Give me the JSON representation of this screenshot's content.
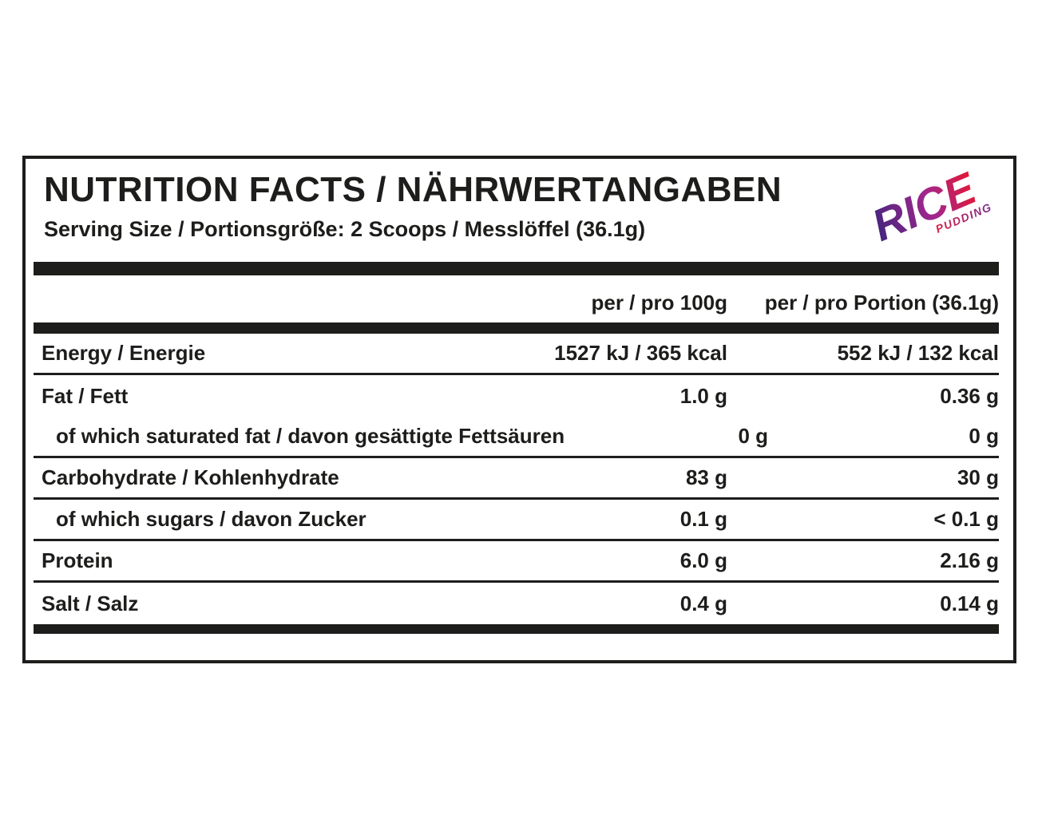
{
  "label": {
    "title": "NUTRITION FACTS / NÄHRWERTANGABEN",
    "serving_line": "Serving Size / Portionsgröße: 2 Scoops / Messlöffel (36.1g)"
  },
  "logo": {
    "text": "RICE",
    "subtext": "PUDDING",
    "colors": {
      "start": "#45257e",
      "mid": "#a1278d",
      "end": "#e31837",
      "sub_start": "#d81f44",
      "sub_end": "#7b2d8e"
    }
  },
  "colors": {
    "text": "#1d1d1b",
    "lines": "#1d1d1b",
    "background": "#ffffff"
  },
  "table": {
    "columns": [
      "per / pro 100g",
      "per / pro Portion (36.1g)"
    ],
    "rows": [
      {
        "label": "Energy / Energie",
        "per100": "1527 kJ / 365 kcal",
        "portion": "552 kJ / 132 kcal"
      },
      {
        "label": "Fat / Fett",
        "per100": "1.0 g",
        "portion": "0.36 g"
      },
      {
        "label": "of which saturated fat / davon gesättigte Fettsäuren",
        "per100": "0 g",
        "portion": "0 g"
      },
      {
        "label": "Carbohydrate / Kohlenhydrate",
        "per100": "83 g",
        "portion": "30 g"
      },
      {
        "label": "of which sugars / davon Zucker",
        "per100": "0.1 g",
        "portion": "< 0.1 g"
      },
      {
        "label": "Protein",
        "per100": "6.0 g",
        "portion": "2.16 g"
      },
      {
        "label": "Salt / Salz",
        "per100": "0.4 g",
        "portion": "0.14 g"
      }
    ]
  }
}
